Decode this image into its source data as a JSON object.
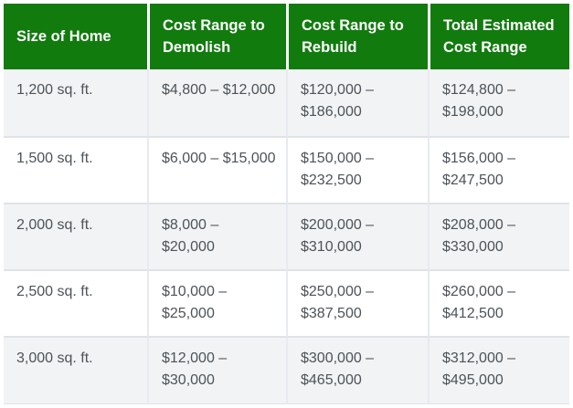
{
  "colors": {
    "page_bg": "#ffffff",
    "header_bg": "#117b0e",
    "header_text": "#ffffff",
    "body_text": "#4d5359",
    "alt_row_bg": "#f1f3f4",
    "row_divider": "#dfe3e8",
    "col_divider": "#e7eaef"
  },
  "table": {
    "headers": [
      "Size of Home",
      "Cost Range to\nDemolish",
      "Cost Range to\nRebuild",
      "Total Estimated\nCost Range"
    ],
    "rows": [
      [
        "1,200 sq. ft.",
        "$4,800 – $12,000",
        "$120,000 –\n$186,000",
        "$124,800 –\n$198,000"
      ],
      [
        "1,500 sq. ft.",
        "$6,000 – $15,000",
        "$150,000 –\n$232,500",
        "$156,000 –\n$247,500"
      ],
      [
        "2,000 sq. ft.",
        "$8,000 –\n$20,000",
        "$200,000 –\n$310,000",
        "$208,000 –\n$330,000"
      ],
      [
        "2,500 sq. ft.",
        "$10,000 –\n$25,000",
        "$250,000 –\n$387,500",
        "$260,000 –\n$412,500"
      ],
      [
        "3,000 sq. ft.",
        "$12,000 –\n$30,000",
        "$300,000 –\n$465,000",
        "$312,000 –\n$495,000"
      ]
    ]
  },
  "chart_data": {
    "type": "table",
    "columns": [
      "Size of Home",
      "Cost Range to Demolish",
      "Cost Range to Rebuild",
      "Total Estimated Cost Range"
    ],
    "rows": [
      [
        "1,200 sq. ft.",
        "$4,800 – $12,000",
        "$120,000 – $186,000",
        "$124,800 – $198,000"
      ],
      [
        "1,500 sq. ft.",
        "$6,000 – $15,000",
        "$150,000 – $232,500",
        "$156,000 – $247,500"
      ],
      [
        "2,000 sq. ft.",
        "$8,000 – $20,000",
        "$200,000 – $310,000",
        "$208,000 – $330,000"
      ],
      [
        "2,500 sq. ft.",
        "$10,000 – $25,000",
        "$250,000 – $387,500",
        "$260,000 – $412,500"
      ],
      [
        "3,000 sq. ft.",
        "$12,000 – $30,000",
        "$300,000 – $465,000",
        "$312,000 – $495,000"
      ]
    ]
  }
}
